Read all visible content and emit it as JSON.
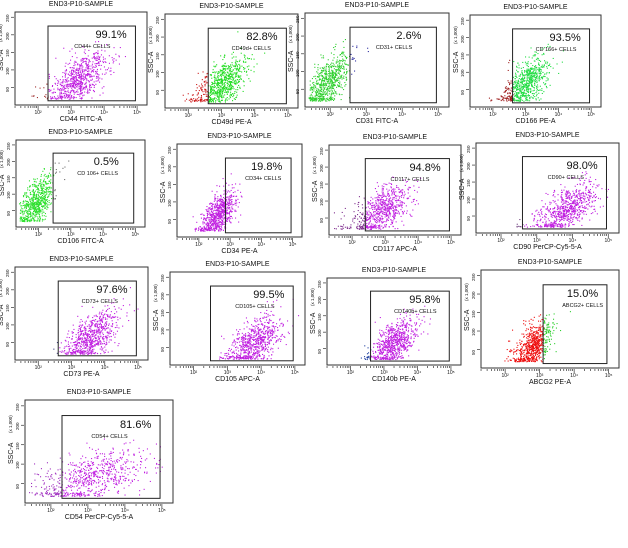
{
  "chart_data": [
    {
      "type": "scatter",
      "title": "END3-P10-SAMPLE",
      "xlabel": "CD44 FITC-A",
      "ylabel": "SSC-A",
      "yunit": "(x 1,000)",
      "percent": "99.1%",
      "gate_label": "CD44+ CELLS",
      "gate_x_min_log10": 2.3,
      "x_scale": "log",
      "x_ticks": [
        "10²",
        "10³",
        "10⁴",
        "10⁵"
      ],
      "y_ticks": [
        "50",
        "100",
        "150",
        "200",
        "250"
      ],
      "colors": {
        "gated": "#c020e0",
        "ungated": "#a03030"
      }
    },
    {
      "type": "scatter",
      "title": "END3-P10-SAMPLE",
      "xlabel": "CD49d PE-A",
      "ylabel": "SSC-A",
      "yunit": "(x 1,000)",
      "percent": "82.8%",
      "gate_label": "CD49d+ CELLS",
      "gate_x_min_log10": 2.6,
      "x_scale": "log",
      "x_ticks": [
        "10²",
        "10³",
        "10⁴",
        "10⁵"
      ],
      "y_ticks": [
        "50",
        "100",
        "150",
        "200",
        "250"
      ],
      "colors": {
        "gated": "#22dd22",
        "ungated": "#cc1a1a"
      }
    },
    {
      "type": "scatter",
      "title": "END3-P10-SAMPLE",
      "xlabel": "CD31 FITC-A",
      "ylabel": "SSC-A",
      "yunit": "(x 1,000)",
      "percent": "2.6%",
      "gate_label": "CD31+ CELLS",
      "gate_x_min_log10": 2.55,
      "x_scale": "log",
      "x_ticks": [
        "10²",
        "10³",
        "10⁴",
        "10⁵"
      ],
      "y_ticks": [
        "50",
        "100",
        "150",
        "200",
        "250"
      ],
      "colors": {
        "gated": "#3030a0",
        "ungated": "#30d030"
      }
    },
    {
      "type": "scatter",
      "title": "END3-P10-SAMPLE",
      "xlabel": "CD166 PE-A",
      "ylabel": "SSC-A",
      "yunit": "(x 1,000)",
      "percent": "93.5%",
      "gate_label": "CD 166+ CELLS",
      "gate_x_min_log10": 2.6,
      "x_scale": "log",
      "x_ticks": [
        "10²",
        "10³",
        "10⁴",
        "10⁵"
      ],
      "y_ticks": [
        "50",
        "100",
        "150",
        "200",
        "250"
      ],
      "colors": {
        "gated": "#22dd44",
        "ungated": "#a02020"
      }
    },
    {
      "type": "scatter",
      "title": "END3-P10-SAMPLE",
      "xlabel": "CD106 FITC-A",
      "ylabel": "SSC-A",
      "yunit": "(x 1,000)",
      "percent": "0.5%",
      "gate_label": "CD 106+ CELLS",
      "gate_x_min_log10": 2.45,
      "x_scale": "log",
      "x_ticks": [
        "10²",
        "10³",
        "10⁴",
        "10⁵"
      ],
      "y_ticks": [
        "50",
        "100",
        "150",
        "200",
        "250"
      ],
      "colors": {
        "gated": "#707070",
        "ungated": "#30e030"
      }
    },
    {
      "type": "scatter",
      "title": "END3-P10-SAMPLE",
      "xlabel": "CD34 PE-A",
      "ylabel": "SSC-A",
      "yunit": "(x 1,000)",
      "percent": "19.8%",
      "gate_label": "CD34+ CELLS",
      "gate_x_min_log10": 2.85,
      "x_scale": "log",
      "x_ticks": [
        "10²",
        "10³",
        "10⁴",
        "10⁵"
      ],
      "y_ticks": [
        "50",
        "100",
        "150",
        "200",
        "250"
      ],
      "colors": {
        "gated": "#c020e0",
        "ungated": "#c020e0"
      }
    },
    {
      "type": "scatter",
      "title": "END3-P10-SAMPLE",
      "xlabel": "CD117 APC-A",
      "ylabel": "SSC-A",
      "yunit": "(x 1,000)",
      "percent": "94.8%",
      "gate_label": "CD117+ CELLS",
      "gate_x_min_log10": 2.4,
      "x_scale": "log",
      "x_ticks": [
        "10²",
        "10³",
        "10⁴",
        "10⁵"
      ],
      "y_ticks": [
        "50",
        "100",
        "150",
        "200",
        "250"
      ],
      "colors": {
        "gated": "#c020e0",
        "ungated": "#803090"
      }
    },
    {
      "type": "scatter",
      "title": "END3-P10-SAMPLE",
      "xlabel": "CD90 PerCP-Cy5-5-A",
      "ylabel": "SSC-A",
      "yunit": "(x 1,000)",
      "percent": "98.0%",
      "gate_label": "CD90+ CELLS",
      "gate_x_min_log10": 2.6,
      "x_scale": "log",
      "x_ticks": [
        "10²",
        "10³",
        "10⁴",
        "10⁵"
      ],
      "y_ticks": [
        "50",
        "100",
        "150",
        "200",
        "250"
      ],
      "colors": {
        "gated": "#c020e0",
        "ungated": "#704080"
      }
    },
    {
      "type": "scatter",
      "title": "END3-P10-SAMPLE",
      "xlabel": "CD73 PE-A",
      "ylabel": "SSC-A",
      "yunit": "(x 1,000)",
      "percent": "97.6%",
      "gate_label": "CD73+ CELLS",
      "gate_x_min_log10": 2.6,
      "x_scale": "log",
      "x_ticks": [
        "10²",
        "10³",
        "10⁴",
        "10⁵"
      ],
      "y_ticks": [
        "50",
        "100",
        "150",
        "200",
        "250"
      ],
      "colors": {
        "gated": "#c020e0",
        "ungated": "#404080"
      }
    },
    {
      "type": "scatter",
      "title": "END3-P10-SAMPLE",
      "xlabel": "CD105 APC-A",
      "ylabel": "SSC-A",
      "yunit": "(x 1,000)",
      "percent": "99.5%",
      "gate_label": "CD105+ CELLS",
      "gate_x_min_log10": 2.5,
      "x_scale": "log",
      "x_ticks": [
        "10²",
        "10³",
        "10⁴",
        "10⁵"
      ],
      "y_ticks": [
        "50",
        "100",
        "150",
        "200",
        "250"
      ],
      "colors": {
        "gated": "#c020e0",
        "ungated": "#404080"
      }
    },
    {
      "type": "scatter",
      "title": "END3-P10-SAMPLE",
      "xlabel": "CD140b PE-A",
      "ylabel": "SSC-A",
      "yunit": "(x 1,000)",
      "percent": "95.8%",
      "gate_label": "CD140b+ CELLS",
      "gate_x_min_log10": 2.6,
      "x_scale": "log",
      "x_ticks": [
        "10²",
        "10³",
        "10⁴",
        "10⁵"
      ],
      "y_ticks": [
        "50",
        "100",
        "150",
        "200",
        "250"
      ],
      "colors": {
        "gated": "#c020e0",
        "ungated": "#2040a0"
      }
    },
    {
      "type": "scatter",
      "title": "END3-P10-SAMPLE",
      "xlabel": "ABCG2 PE-A",
      "ylabel": "SSC-A",
      "yunit": "(x 1,000)",
      "percent": "15.0%",
      "gate_label": "ABCG2+ CELLS",
      "gate_x_min_log10": 3.1,
      "x_scale": "log",
      "x_ticks": [
        "10²",
        "10³",
        "10⁴",
        "10⁵"
      ],
      "y_ticks": [
        "50",
        "100",
        "150",
        "200",
        "250"
      ],
      "colors": {
        "gated": "#30d030",
        "ungated": "#ee1010"
      }
    },
    {
      "type": "scatter",
      "title": "END3-P10-SAMPLE",
      "xlabel": "CD54 PerCP-Cy5-5-A",
      "ylabel": "SSC-A",
      "yunit": "(x 1,000)",
      "percent": "81.6%",
      "gate_label": "CD54+ CELLS",
      "gate_x_min_log10": 2.3,
      "x_scale": "log",
      "x_ticks": [
        "10²",
        "10³",
        "10⁴",
        "10⁵"
      ],
      "y_ticks": [
        "50",
        "100",
        "150",
        "200",
        "250"
      ],
      "colors": {
        "gated": "#c020e0",
        "ungated": "#a030c0"
      }
    }
  ]
}
